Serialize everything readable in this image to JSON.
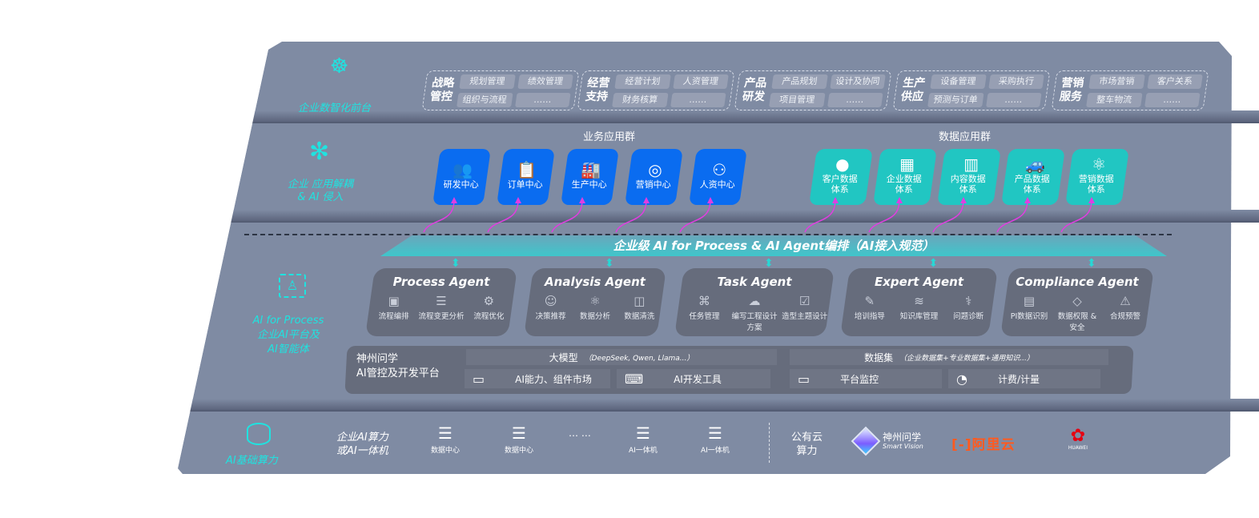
{
  "layers": {
    "front": {
      "label": "企业数智化前台",
      "icon": "brain-icon"
    },
    "app": {
      "label_line1": "企业 应用解耦",
      "label_line2": "& AI 侵入",
      "icon": "molecule-icon"
    },
    "ai": {
      "label_line1": "AI for Process",
      "label_line2": "企业AI平台及",
      "label_line3": "AI智能体",
      "icon": "person-scan-icon"
    },
    "compute": {
      "label": "AI基础算力",
      "icon": "database-icon"
    }
  },
  "front_groups": [
    {
      "title": "战略管控",
      "items": [
        "规划管理",
        "绩效管理",
        "组织与流程",
        "……"
      ]
    },
    {
      "title": "经营支持",
      "items": [
        "经营计划",
        "人资管理",
        "财务核算",
        "……"
      ]
    },
    {
      "title": "产品研发",
      "items": [
        "产品规划",
        "设计及协同",
        "项目管理",
        "……"
      ]
    },
    {
      "title": "生产供应",
      "items": [
        "设备管理",
        "采购执行",
        "预测与订单",
        "……"
      ]
    },
    {
      "title": "营销服务",
      "items": [
        "市场营销",
        "客户关系",
        "整车物流",
        "……"
      ]
    }
  ],
  "business_apps": {
    "title": "业务应用群",
    "items": [
      {
        "label": "研发中心",
        "icon": "team-icon"
      },
      {
        "label": "订单中心",
        "icon": "clipboard-icon"
      },
      {
        "label": "生产中心",
        "icon": "factory-icon"
      },
      {
        "label": "营销中心",
        "icon": "target-icon"
      },
      {
        "label": "人资中心",
        "icon": "people-icon"
      }
    ]
  },
  "data_apps": {
    "title": "数据应用群",
    "items": [
      {
        "label": "客户数据体系",
        "icon": "user-icon"
      },
      {
        "label": "企业数据体系",
        "icon": "building-icon"
      },
      {
        "label": "内容数据体系",
        "icon": "books-icon"
      },
      {
        "label": "产品数据体系",
        "icon": "car-icon"
      },
      {
        "label": "营销数据体系",
        "icon": "atom-icon"
      }
    ]
  },
  "banner": "企业级 AI for Process & AI Agent编排（AI接入规范）",
  "agents": [
    {
      "title": "Process Agent",
      "caps": [
        {
          "label": "流程编排",
          "icon": "chart-window-icon"
        },
        {
          "label": "流程变更分析",
          "icon": "list-icon"
        },
        {
          "label": "流程优化",
          "icon": "optimize-icon"
        }
      ]
    },
    {
      "title": "Analysis Agent",
      "caps": [
        {
          "label": "决策推荐",
          "icon": "head-icon"
        },
        {
          "label": "数据分析",
          "icon": "atom-icon"
        },
        {
          "label": "数据清洗",
          "icon": "clean-icon"
        }
      ]
    },
    {
      "title": "Task Agent",
      "caps": [
        {
          "label": "任务管理",
          "icon": "network-icon"
        },
        {
          "label": "编写工程设计方案",
          "icon": "cloud-icon"
        },
        {
          "label": "造型主题设计",
          "icon": "checklist-icon"
        }
      ]
    },
    {
      "title": "Expert Agent",
      "caps": [
        {
          "label": "培训指导",
          "icon": "wand-icon"
        },
        {
          "label": "知识库管理",
          "icon": "layers-icon"
        },
        {
          "label": "问题诊断",
          "icon": "diagnosis-icon"
        }
      ]
    },
    {
      "title": "Compliance Agent",
      "caps": [
        {
          "label": "PI数据识别",
          "icon": "id-card-icon"
        },
        {
          "label": "数据权限 & 安全",
          "icon": "shield-icon"
        },
        {
          "label": "合规预警",
          "icon": "alert-icon"
        }
      ]
    }
  ],
  "platform": {
    "title_line1": "神州问学",
    "title_line2": "AI管控及开发平台",
    "model_label": "大模型",
    "model_note": "（DeepSeek, Qwen, Llama...）",
    "dataset_label": "数据集",
    "dataset_note": "（企业数据集+专业数据集+通用知识...）",
    "tools": [
      {
        "label": "AI能力、组件市场",
        "icon": "market-icon"
      },
      {
        "label": "AI开发工具",
        "icon": "dev-tool-icon"
      },
      {
        "label": "平台监控",
        "icon": "monitor-icon"
      },
      {
        "label": "计费/计量",
        "icon": "gauge-icon"
      }
    ]
  },
  "compute": {
    "private_label_line1": "企业AI算力",
    "private_label_line2": "或AI一体机",
    "servers": [
      "数据中心",
      "数据中心",
      "AI一体机",
      "AI一体机"
    ],
    "ellipsis": "… …",
    "public_label_line1": "公有云",
    "public_label_line2": "算力",
    "logos": [
      {
        "name": "神州问学",
        "sub": "Smart Vision",
        "color": "#ffffff"
      },
      {
        "name": "阿里云",
        "color": "#ff5a1f"
      },
      {
        "name": "HUAWEI",
        "color": "#e60012"
      }
    ]
  },
  "colors": {
    "panel": "#7f8ba3",
    "cyan": "#1fe3e0",
    "blue_tile": "#0a6cf0",
    "teal_tile": "#21c6c2",
    "agent": "#666c7c",
    "arrow": "#e03ee0"
  }
}
